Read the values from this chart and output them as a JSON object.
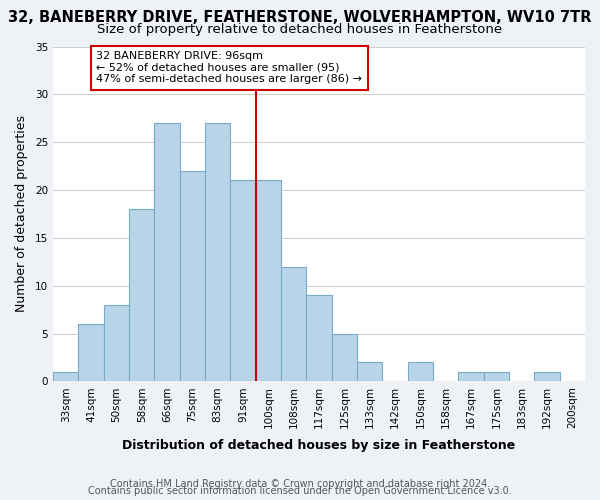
{
  "title": "32, BANEBERRY DRIVE, FEATHERSTONE, WOLVERHAMPTON, WV10 7TR",
  "subtitle": "Size of property relative to detached houses in Featherstone",
  "xlabel": "Distribution of detached houses by size in Featherstone",
  "ylabel": "Number of detached properties",
  "bar_labels": [
    "33sqm",
    "41sqm",
    "50sqm",
    "58sqm",
    "66sqm",
    "75sqm",
    "83sqm",
    "91sqm",
    "100sqm",
    "108sqm",
    "117sqm",
    "125sqm",
    "133sqm",
    "142sqm",
    "150sqm",
    "158sqm",
    "167sqm",
    "175sqm",
    "183sqm",
    "192sqm",
    "200sqm"
  ],
  "bar_values": [
    1,
    6,
    8,
    18,
    27,
    22,
    27,
    21,
    21,
    12,
    9,
    5,
    2,
    0,
    2,
    0,
    1,
    1,
    0,
    1,
    0
  ],
  "bar_color": "#b8d4e8",
  "bar_edge_color": "#7aaac8",
  "vline_index": 8,
  "vline_color": "#cc0000",
  "annotation_box_text": "32 BANEBERRY DRIVE: 96sqm\n← 52% of detached houses are smaller (95)\n47% of semi-detached houses are larger (86) →",
  "annotation_box_edge_color": "#cc0000",
  "annotation_box_face_color": "#ffffff",
  "ylim": [
    0,
    35
  ],
  "yticks": [
    0,
    5,
    10,
    15,
    20,
    25,
    30,
    35
  ],
  "footer1": "Contains HM Land Registry data © Crown copyright and database right 2024.",
  "footer2": "Contains public sector information licensed under the Open Government Licence v3.0.",
  "background_color": "#eef2f7",
  "plot_background_color": "#ffffff",
  "title_fontsize": 10.5,
  "subtitle_fontsize": 9.5,
  "axis_label_fontsize": 9,
  "tick_fontsize": 7.5,
  "footer_fontsize": 7
}
